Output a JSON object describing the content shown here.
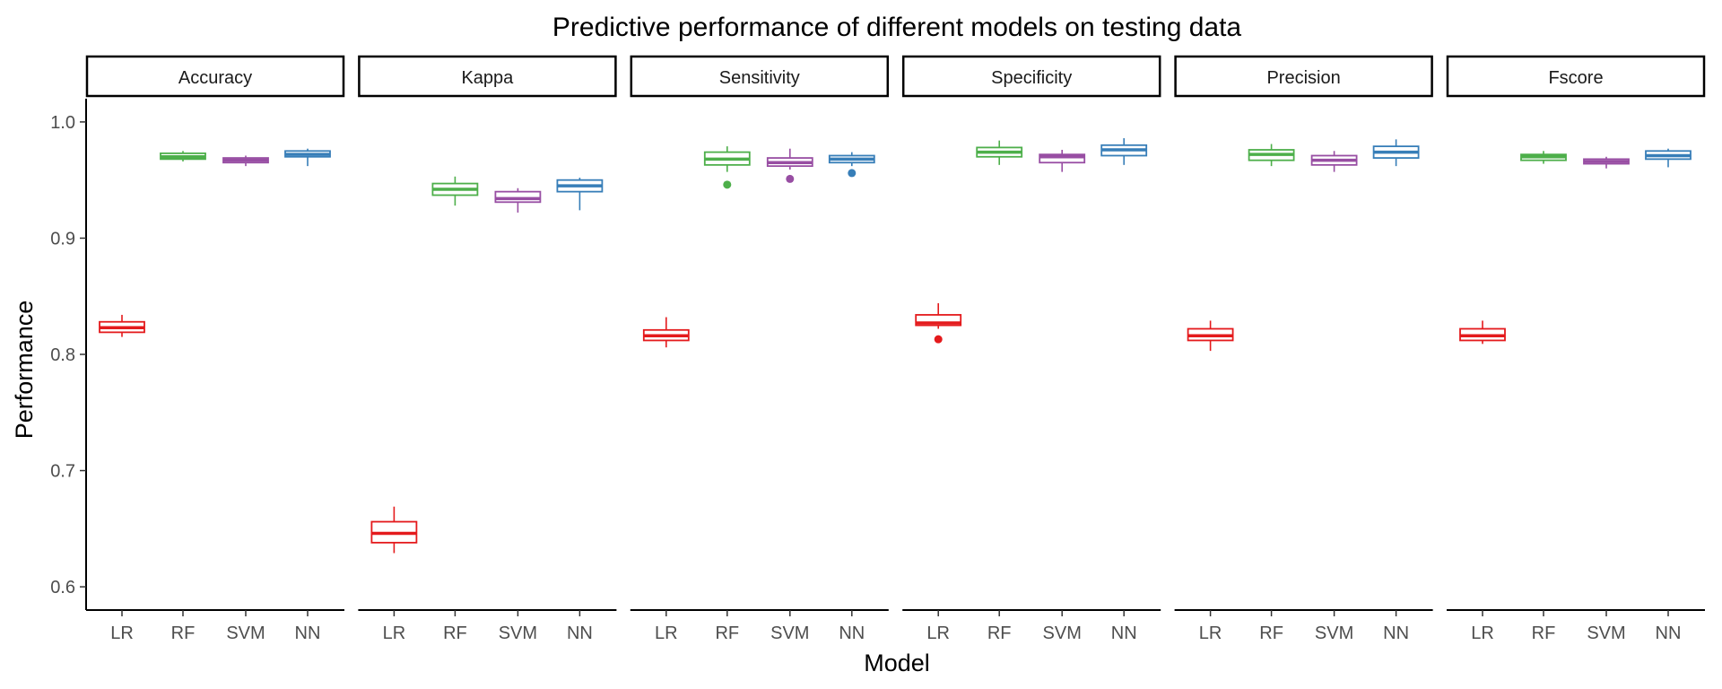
{
  "chart_data": {
    "type": "boxplot",
    "title": "Predictive performance of different models on testing data",
    "xlabel": "Model",
    "ylabel": "Performance",
    "ylim": [
      0.58,
      1.02
    ],
    "yticks": [
      0.6,
      0.7,
      0.8,
      0.9,
      1.0
    ],
    "ytick_labels": [
      "0.6",
      "0.7",
      "0.8",
      "0.9",
      "1.0"
    ],
    "categories": [
      "LR",
      "RF",
      "SVM",
      "NN"
    ],
    "colors": {
      "LR": "#e41a1c",
      "RF": "#4daf4a",
      "SVM": "#984ea3",
      "NN": "#377eb8"
    },
    "grid": false,
    "legend": "none",
    "facets": [
      {
        "name": "Accuracy",
        "boxes": [
          {
            "model": "LR",
            "min": 0.815,
            "q1": 0.819,
            "median": 0.823,
            "q3": 0.828,
            "max": 0.834,
            "outliers": []
          },
          {
            "model": "RF",
            "min": 0.966,
            "q1": 0.968,
            "median": 0.97,
            "q3": 0.973,
            "max": 0.975,
            "outliers": []
          },
          {
            "model": "SVM",
            "min": 0.962,
            "q1": 0.965,
            "median": 0.967,
            "q3": 0.969,
            "max": 0.971,
            "outliers": []
          },
          {
            "model": "NN",
            "min": 0.962,
            "q1": 0.97,
            "median": 0.972,
            "q3": 0.975,
            "max": 0.977,
            "outliers": []
          }
        ]
      },
      {
        "name": "Kappa",
        "boxes": [
          {
            "model": "LR",
            "min": 0.629,
            "q1": 0.638,
            "median": 0.646,
            "q3": 0.656,
            "max": 0.669,
            "outliers": []
          },
          {
            "model": "RF",
            "min": 0.928,
            "q1": 0.937,
            "median": 0.942,
            "q3": 0.947,
            "max": 0.953,
            "outliers": []
          },
          {
            "model": "SVM",
            "min": 0.922,
            "q1": 0.931,
            "median": 0.934,
            "q3": 0.94,
            "max": 0.943,
            "outliers": []
          },
          {
            "model": "NN",
            "min": 0.924,
            "q1": 0.94,
            "median": 0.945,
            "q3": 0.95,
            "max": 0.952,
            "outliers": []
          }
        ]
      },
      {
        "name": "Sensitivity",
        "boxes": [
          {
            "model": "LR",
            "min": 0.806,
            "q1": 0.812,
            "median": 0.816,
            "q3": 0.821,
            "max": 0.832,
            "outliers": []
          },
          {
            "model": "RF",
            "min": 0.957,
            "q1": 0.963,
            "median": 0.968,
            "q3": 0.974,
            "max": 0.979,
            "outliers": [
              0.946
            ]
          },
          {
            "model": "SVM",
            "min": 0.959,
            "q1": 0.962,
            "median": 0.965,
            "q3": 0.969,
            "max": 0.977,
            "outliers": [
              0.951
            ]
          },
          {
            "model": "NN",
            "min": 0.962,
            "q1": 0.965,
            "median": 0.968,
            "q3": 0.971,
            "max": 0.974,
            "outliers": [
              0.956
            ]
          }
        ]
      },
      {
        "name": "Specificity",
        "boxes": [
          {
            "model": "LR",
            "min": 0.822,
            "q1": 0.825,
            "median": 0.827,
            "q3": 0.834,
            "max": 0.844,
            "outliers": [
              0.813
            ]
          },
          {
            "model": "RF",
            "min": 0.963,
            "q1": 0.97,
            "median": 0.974,
            "q3": 0.978,
            "max": 0.984,
            "outliers": []
          },
          {
            "model": "SVM",
            "min": 0.957,
            "q1": 0.965,
            "median": 0.97,
            "q3": 0.972,
            "max": 0.976,
            "outliers": []
          },
          {
            "model": "NN",
            "min": 0.963,
            "q1": 0.971,
            "median": 0.976,
            "q3": 0.98,
            "max": 0.986,
            "outliers": []
          }
        ]
      },
      {
        "name": "Precision",
        "boxes": [
          {
            "model": "LR",
            "min": 0.803,
            "q1": 0.812,
            "median": 0.816,
            "q3": 0.822,
            "max": 0.829,
            "outliers": []
          },
          {
            "model": "RF",
            "min": 0.962,
            "q1": 0.967,
            "median": 0.972,
            "q3": 0.976,
            "max": 0.981,
            "outliers": []
          },
          {
            "model": "SVM",
            "min": 0.957,
            "q1": 0.963,
            "median": 0.967,
            "q3": 0.971,
            "max": 0.975,
            "outliers": []
          },
          {
            "model": "NN",
            "min": 0.962,
            "q1": 0.969,
            "median": 0.974,
            "q3": 0.979,
            "max": 0.985,
            "outliers": []
          }
        ]
      },
      {
        "name": "Fscore",
        "boxes": [
          {
            "model": "LR",
            "min": 0.809,
            "q1": 0.812,
            "median": 0.816,
            "q3": 0.822,
            "max": 0.829,
            "outliers": []
          },
          {
            "model": "RF",
            "min": 0.964,
            "q1": 0.967,
            "median": 0.97,
            "q3": 0.972,
            "max": 0.975,
            "outliers": []
          },
          {
            "model": "SVM",
            "min": 0.96,
            "q1": 0.964,
            "median": 0.966,
            "q3": 0.968,
            "max": 0.97,
            "outliers": []
          },
          {
            "model": "NN",
            "min": 0.961,
            "q1": 0.968,
            "median": 0.971,
            "q3": 0.975,
            "max": 0.977,
            "outliers": []
          }
        ]
      }
    ]
  }
}
